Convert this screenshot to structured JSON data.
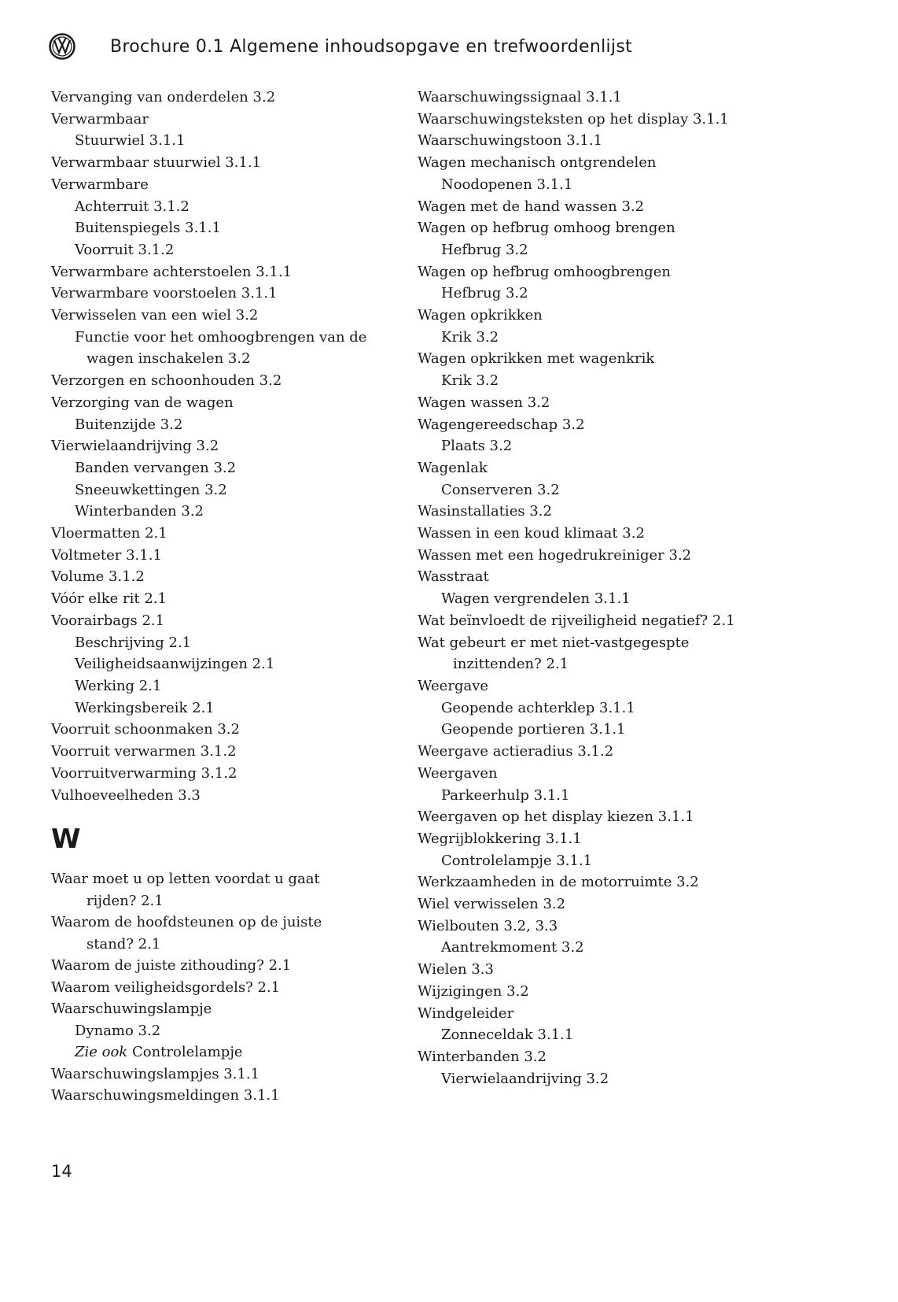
{
  "header": {
    "logo": "VW",
    "title": "Brochure 0.1  Algemene inhoudsopgave en trefwoordenlijst"
  },
  "section_letter": "W",
  "page_number": "14",
  "left": [
    {
      "t": "Vervanging van onderdelen  3.2",
      "l": 0
    },
    {
      "t": "Verwarmbaar",
      "l": 0
    },
    {
      "t": "Stuurwiel  3.1.1",
      "l": 1
    },
    {
      "t": "Verwarmbaar stuurwiel  3.1.1",
      "l": 0
    },
    {
      "t": "Verwarmbare",
      "l": 0
    },
    {
      "t": "Achterruit  3.1.2",
      "l": 1
    },
    {
      "t": "Buitenspiegels  3.1.1",
      "l": 1
    },
    {
      "t": "Voorruit  3.1.2",
      "l": 1
    },
    {
      "t": "Verwarmbare achterstoelen  3.1.1",
      "l": 0
    },
    {
      "t": "Verwarmbare voorstoelen  3.1.1",
      "l": 0
    },
    {
      "t": "Verwisselen van een wiel  3.2",
      "l": 0
    },
    {
      "t": "Functie voor het omhoogbrengen van de",
      "l": 1
    },
    {
      "t": "wagen inschakelen  3.2",
      "l": 2
    },
    {
      "t": "Verzorgen en schoonhouden  3.2",
      "l": 0
    },
    {
      "t": "Verzorging van de wagen",
      "l": 0
    },
    {
      "t": "Buitenzijde  3.2",
      "l": 1
    },
    {
      "t": "Vierwielaandrijving  3.2",
      "l": 0
    },
    {
      "t": "Banden vervangen  3.2",
      "l": 1
    },
    {
      "t": "Sneeuwkettingen  3.2",
      "l": 1
    },
    {
      "t": "Winterbanden  3.2",
      "l": 1
    },
    {
      "t": "Vloermatten  2.1",
      "l": 0
    },
    {
      "t": "Voltmeter  3.1.1",
      "l": 0
    },
    {
      "t": "Volume  3.1.2",
      "l": 0
    },
    {
      "t": "Vóór elke rit  2.1",
      "l": 0
    },
    {
      "t": "Voorairbags  2.1",
      "l": 0
    },
    {
      "t": "Beschrijving  2.1",
      "l": 1
    },
    {
      "t": "Veiligheidsaanwijzingen  2.1",
      "l": 1
    },
    {
      "t": "Werking  2.1",
      "l": 1
    },
    {
      "t": "Werkingsbereik  2.1",
      "l": 1
    },
    {
      "t": "Voorruit schoonmaken  3.2",
      "l": 0
    },
    {
      "t": "Voorruit verwarmen  3.1.2",
      "l": 0
    },
    {
      "t": "Voorruitverwarming  3.1.2",
      "l": 0
    },
    {
      "t": "Vulhoeveelheden  3.3",
      "l": 0
    }
  ],
  "left_w": [
    {
      "t": "Waar moet u op letten voordat u gaat",
      "l": 0
    },
    {
      "t": "rijden?  2.1",
      "l": 3
    },
    {
      "t": "Waarom de hoofdsteunen op de juiste",
      "l": 0
    },
    {
      "t": "stand?  2.1",
      "l": 3
    },
    {
      "t": "Waarom de juiste zithouding?  2.1",
      "l": 0
    },
    {
      "t": "Waarom veiligheidsgordels?  2.1",
      "l": 0
    },
    {
      "t": "Waarschuwingslampje",
      "l": 0
    },
    {
      "t": "Dynamo  3.2",
      "l": 1
    },
    {
      "t": "Controlelampje",
      "l": 1,
      "i": "Zie ook "
    },
    {
      "t": "Waarschuwingslampjes  3.1.1",
      "l": 0
    },
    {
      "t": "Waarschuwingsmeldingen  3.1.1",
      "l": 0
    }
  ],
  "right": [
    {
      "t": "Waarschuwingssignaal  3.1.1",
      "l": 0
    },
    {
      "t": "Waarschuwingsteksten op het display  3.1.1",
      "l": 0
    },
    {
      "t": "Waarschuwingstoon  3.1.1",
      "l": 0
    },
    {
      "t": "Wagen mechanisch ontgrendelen",
      "l": 0
    },
    {
      "t": "Noodopenen  3.1.1",
      "l": 1
    },
    {
      "t": "Wagen met de hand wassen  3.2",
      "l": 0
    },
    {
      "t": "Wagen op hefbrug omhoog brengen",
      "l": 0
    },
    {
      "t": "Hefbrug  3.2",
      "l": 1
    },
    {
      "t": "Wagen op hefbrug omhoogbrengen",
      "l": 0
    },
    {
      "t": "Hefbrug  3.2",
      "l": 1
    },
    {
      "t": "Wagen opkrikken",
      "l": 0
    },
    {
      "t": "Krik  3.2",
      "l": 1
    },
    {
      "t": "Wagen opkrikken met wagenkrik",
      "l": 0
    },
    {
      "t": "Krik  3.2",
      "l": 1
    },
    {
      "t": "Wagen wassen  3.2",
      "l": 0
    },
    {
      "t": "Wagengereedschap  3.2",
      "l": 0
    },
    {
      "t": "Plaats  3.2",
      "l": 1
    },
    {
      "t": "Wagenlak",
      "l": 0
    },
    {
      "t": "Conserveren  3.2",
      "l": 1
    },
    {
      "t": "Wasinstallaties  3.2",
      "l": 0
    },
    {
      "t": "Wassen in een koud klimaat  3.2",
      "l": 0
    },
    {
      "t": "Wassen met een hogedrukreiniger  3.2",
      "l": 0
    },
    {
      "t": "Wasstraat",
      "l": 0
    },
    {
      "t": "Wagen vergrendelen  3.1.1",
      "l": 1
    },
    {
      "t": "Wat beïnvloedt de rijveiligheid negatief?  2.1",
      "l": 0
    },
    {
      "t": "Wat gebeurt er met niet-vastgegespte",
      "l": 0
    },
    {
      "t": "inzittenden?  2.1",
      "l": 2
    },
    {
      "t": "Weergave",
      "l": 0
    },
    {
      "t": "Geopende achterklep  3.1.1",
      "l": 1
    },
    {
      "t": "Geopende portieren  3.1.1",
      "l": 1
    },
    {
      "t": "Weergave actieradius  3.1.2",
      "l": 0
    },
    {
      "t": "Weergaven",
      "l": 0
    },
    {
      "t": "Parkeerhulp  3.1.1",
      "l": 1
    },
    {
      "t": "Weergaven op het display kiezen  3.1.1",
      "l": 0
    },
    {
      "t": "Wegrijblokkering  3.1.1",
      "l": 0
    },
    {
      "t": "Controlelampje  3.1.1",
      "l": 1
    },
    {
      "t": "Werkzaamheden in de motorruimte  3.2",
      "l": 0
    },
    {
      "t": "Wiel verwisselen  3.2",
      "l": 0
    },
    {
      "t": "Wielbouten  3.2, 3.3",
      "l": 0
    },
    {
      "t": "Aantrekmoment  3.2",
      "l": 1
    },
    {
      "t": "Wielen  3.3",
      "l": 0
    },
    {
      "t": "Wijzigingen  3.2",
      "l": 0
    },
    {
      "t": "Windgeleider",
      "l": 0
    },
    {
      "t": "Zonneceldak  3.1.1",
      "l": 1
    },
    {
      "t": "Winterbanden  3.2",
      "l": 0
    },
    {
      "t": "Vierwielaandrijving  3.2",
      "l": 1
    }
  ]
}
